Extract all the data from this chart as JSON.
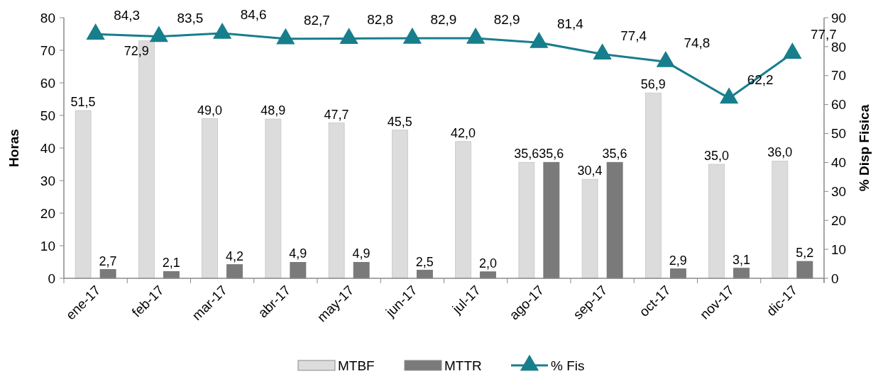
{
  "chart_data": {
    "type": "bar",
    "categories": [
      "ene-17",
      "feb-17",
      "mar-17",
      "abr-17",
      "may-17",
      "jun-17",
      "jul-17",
      "ago-17",
      "sep-17",
      "oct-17",
      "nov-17",
      "dic-17"
    ],
    "ylabel": "Horas",
    "y2label": "% Disp Fisica",
    "ylim": [
      0,
      80
    ],
    "yticks": [
      0,
      10,
      20,
      30,
      40,
      50,
      60,
      70,
      80
    ],
    "y2lim": [
      0,
      90
    ],
    "y2ticks": [
      0,
      10,
      20,
      30,
      40,
      50,
      60,
      70,
      80,
      90
    ],
    "series": [
      {
        "name": "MTBF",
        "color": "#dcdcdc",
        "values": [
          51.5,
          72.9,
          49.0,
          48.9,
          47.7,
          45.5,
          42.0,
          35.6,
          30.4,
          56.9,
          35.0,
          36.0
        ],
        "value_labels": [
          "51,5",
          "72,9",
          "49,0",
          "48,9",
          "47,7",
          "45,5",
          "42,0",
          "35,6",
          "30,4",
          "56,9",
          "35,0",
          "36,0"
        ]
      },
      {
        "name": "MTTR",
        "color": "#7a7a7a",
        "values": [
          2.7,
          2.1,
          4.2,
          4.9,
          4.9,
          2.5,
          2.0,
          35.6,
          35.6,
          2.9,
          3.1,
          5.2
        ],
        "value_labels": [
          "2,7",
          "2,1",
          "4,2",
          "4,9",
          "4,9",
          "2,5",
          "2,0",
          "35,6",
          "35,6",
          "2,9",
          "3,1",
          "5,2"
        ]
      },
      {
        "name": "% Fis",
        "type": "line",
        "axis": "y2",
        "color": "#177e8c",
        "marker": "triangle",
        "values": [
          84.3,
          83.5,
          84.6,
          82.7,
          82.8,
          82.9,
          82.9,
          81.4,
          77.4,
          74.8,
          62.2,
          77.7
        ],
        "value_labels": [
          "84,3",
          "83,5",
          "84,6",
          "82,7",
          "82,8",
          "82,9",
          "82,9",
          "81,4",
          "77,4",
          "74,8",
          "62,2",
          "77,7"
        ]
      }
    ],
    "legend": "bottom",
    "grid": false
  }
}
